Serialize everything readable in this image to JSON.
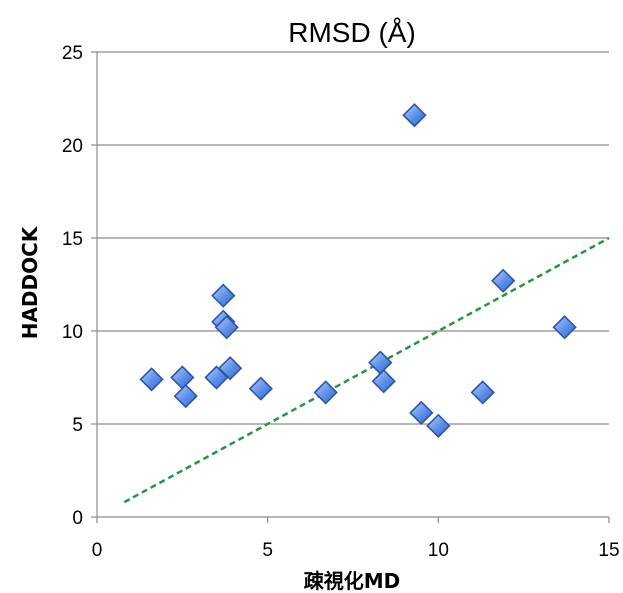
{
  "chart_data": {
    "type": "scatter",
    "title": "RMSD (Å)",
    "xlabel": "疎視化MD",
    "ylabel": "HADDOCK",
    "xlim": [
      0,
      15
    ],
    "ylim": [
      0,
      25
    ],
    "xticks": [
      0,
      5,
      10,
      15
    ],
    "yticks": [
      0,
      5,
      10,
      15,
      20,
      25
    ],
    "grid": "horizontal",
    "series": [
      {
        "marker": "diamond",
        "color": "#4a7fe0",
        "points": [
          {
            "x": 1.6,
            "y": 7.4
          },
          {
            "x": 2.5,
            "y": 7.5
          },
          {
            "x": 2.6,
            "y": 6.5
          },
          {
            "x": 3.5,
            "y": 7.5
          },
          {
            "x": 3.7,
            "y": 11.9
          },
          {
            "x": 3.7,
            "y": 10.5
          },
          {
            "x": 3.8,
            "y": 10.2
          },
          {
            "x": 3.9,
            "y": 8.0
          },
          {
            "x": 4.8,
            "y": 6.9
          },
          {
            "x": 6.7,
            "y": 6.7
          },
          {
            "x": 8.3,
            "y": 8.3
          },
          {
            "x": 8.4,
            "y": 7.3
          },
          {
            "x": 9.3,
            "y": 21.6
          },
          {
            "x": 9.5,
            "y": 5.6
          },
          {
            "x": 10.0,
            "y": 4.9
          },
          {
            "x": 11.3,
            "y": 6.7
          },
          {
            "x": 11.9,
            "y": 12.7
          },
          {
            "x": 13.7,
            "y": 10.2
          }
        ]
      }
    ],
    "reference_line": {
      "style": "dashed",
      "color": "#1e9a3a",
      "points": [
        {
          "x": 0.8,
          "y": 0.8
        },
        {
          "x": 15,
          "y": 15
        }
      ]
    }
  }
}
